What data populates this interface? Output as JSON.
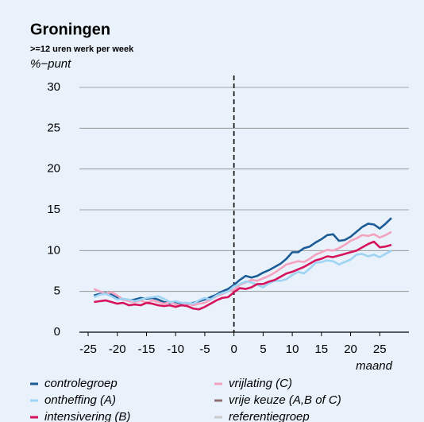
{
  "chart_data": {
    "type": "line",
    "title": "Groningen",
    "subtitle": ">=12 uren werk per week",
    "y_label": "%−punt",
    "x_label": "maand",
    "x": [
      -24,
      -23,
      -22,
      -21,
      -20,
      -19,
      -18,
      -17,
      -16,
      -15,
      -14,
      -13,
      -12,
      -11,
      -10,
      -9,
      -8,
      -7,
      -6,
      -5,
      -4,
      -3,
      -2,
      -1,
      0,
      1,
      2,
      3,
      4,
      5,
      6,
      7,
      8,
      9,
      10,
      11,
      12,
      13,
      14,
      15,
      16,
      17,
      18,
      19,
      20,
      21,
      22,
      23,
      24,
      25,
      26,
      27
    ],
    "series": [
      {
        "name": "controlegroep",
        "color": "#1b5c97",
        "values": [
          4.5,
          4.7,
          4.8,
          4.6,
          4.2,
          4.0,
          3.9,
          4.0,
          4.2,
          4.1,
          4.2,
          4.0,
          3.7,
          3.6,
          3.7,
          3.5,
          3.4,
          3.6,
          3.8,
          4.0,
          4.3,
          4.6,
          5.0,
          5.3,
          5.8,
          6.4,
          6.9,
          6.7,
          6.9,
          7.3,
          7.6,
          8.0,
          8.4,
          9.0,
          9.8,
          9.8,
          10.3,
          10.5,
          11.0,
          11.4,
          11.9,
          12.0,
          11.2,
          11.3,
          11.7,
          12.3,
          12.9,
          13.3,
          13.2,
          12.7,
          13.3,
          14.0
        ]
      },
      {
        "name": "vrijlating (C)",
        "color": "#f4a3bf",
        "values": [
          5.3,
          5.0,
          4.7,
          4.9,
          4.5,
          4.0,
          3.8,
          3.7,
          3.9,
          3.6,
          3.9,
          3.7,
          3.5,
          3.7,
          3.4,
          3.3,
          3.5,
          3.3,
          3.5,
          3.6,
          4.0,
          4.4,
          4.7,
          5.0,
          5.2,
          5.8,
          6.1,
          6.4,
          6.3,
          6.6,
          6.9,
          7.3,
          7.8,
          8.3,
          8.5,
          8.7,
          8.6,
          9.0,
          9.5,
          9.8,
          10.1,
          10.0,
          10.3,
          10.7,
          11.2,
          11.5,
          11.9,
          11.8,
          12.0,
          11.6,
          11.9,
          12.3
        ]
      },
      {
        "name": "ontheffing (A)",
        "color": "#9fd4f4",
        "values": [
          4.3,
          4.6,
          4.7,
          4.4,
          4.0,
          4.1,
          4.0,
          3.8,
          4.0,
          4.2,
          4.3,
          4.4,
          4.1,
          3.7,
          3.8,
          3.6,
          3.6,
          3.5,
          3.9,
          4.2,
          4.0,
          4.5,
          4.8,
          5.0,
          5.6,
          5.9,
          6.2,
          6.1,
          5.8,
          5.5,
          6.0,
          6.3,
          6.3,
          6.5,
          7.0,
          7.4,
          7.2,
          7.8,
          8.5,
          8.6,
          8.8,
          8.7,
          8.3,
          8.6,
          8.9,
          9.5,
          9.6,
          9.3,
          9.5,
          9.2,
          9.6,
          10.0
        ]
      },
      {
        "name": "vrije keuze (A,B of C)",
        "color": "#8c7273",
        "values": [
          null,
          null,
          null,
          null,
          null,
          null,
          null,
          null,
          null,
          null,
          null,
          null,
          null,
          null,
          null,
          null,
          null,
          null,
          null,
          null,
          null,
          null,
          null,
          null,
          null,
          null,
          null,
          null,
          null,
          null,
          null,
          null,
          null,
          null,
          null,
          null,
          null,
          null,
          null,
          null,
          null,
          null,
          null,
          null,
          null,
          null,
          null,
          null,
          null,
          null,
          null,
          null
        ]
      },
      {
        "name": "intensivering (B)",
        "color": "#d6145c",
        "values": [
          3.7,
          3.8,
          3.9,
          3.7,
          3.5,
          3.6,
          3.3,
          3.4,
          3.3,
          3.6,
          3.5,
          3.3,
          3.2,
          3.3,
          3.1,
          3.3,
          3.2,
          2.9,
          2.8,
          3.1,
          3.5,
          3.9,
          4.2,
          4.3,
          4.9,
          5.4,
          5.3,
          5.5,
          5.9,
          5.9,
          6.2,
          6.4,
          6.8,
          7.2,
          7.4,
          7.7,
          8.0,
          8.4,
          8.8,
          9.0,
          9.3,
          9.2,
          9.4,
          9.6,
          9.8,
          10.0,
          10.4,
          10.8,
          11.1,
          10.4,
          10.5,
          10.7
        ]
      },
      {
        "name": "referentiegroep",
        "color": "#c9cbcd",
        "values": [
          null,
          null,
          null,
          null,
          null,
          null,
          null,
          null,
          null,
          null,
          null,
          null,
          null,
          null,
          null,
          null,
          null,
          null,
          null,
          null,
          null,
          null,
          null,
          null,
          null,
          null,
          null,
          null,
          null,
          null,
          null,
          null,
          null,
          null,
          null,
          null,
          null,
          null,
          null,
          null,
          null,
          null,
          null,
          null,
          null,
          null,
          null,
          null,
          null,
          null,
          null,
          null
        ]
      }
    ],
    "xlim": [
      -26.5,
      30
    ],
    "xticks": [
      -25,
      -20,
      -15,
      -10,
      -5,
      0,
      5,
      10,
      15,
      20,
      25
    ],
    "ylim": [
      0,
      30
    ],
    "yticks": [
      0,
      5,
      10,
      15,
      20,
      25,
      30
    ],
    "grid": true,
    "vline": 0
  }
}
